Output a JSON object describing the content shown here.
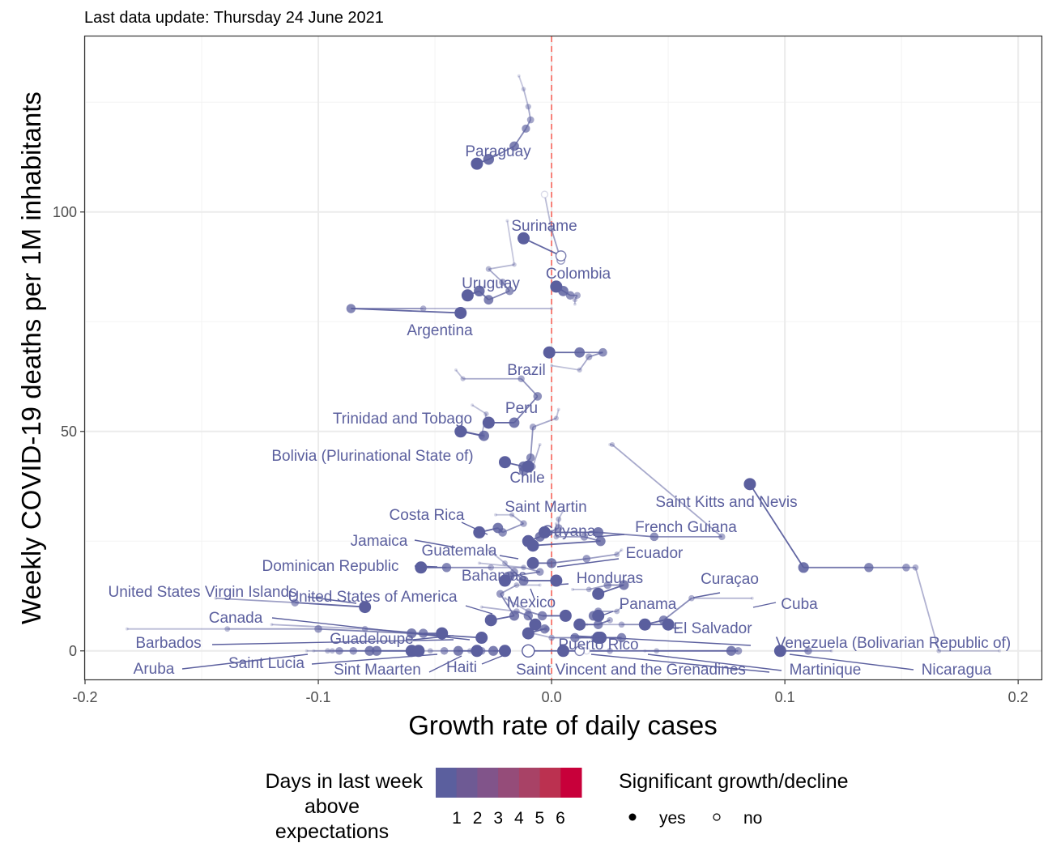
{
  "chart_data": {
    "type": "scatter",
    "subtitle": "Last data update: Thursday 24 June 2021",
    "xlabel": "Growth rate of daily cases",
    "ylabel": "Weekly COVID-19 deaths per 1M inhabitants",
    "xlim": [
      -0.2,
      0.21
    ],
    "ylim": [
      -6.5,
      140
    ],
    "x_ticks": [
      -0.2,
      -0.1,
      0.0,
      0.1,
      0.2
    ],
    "x_tick_labels": [
      "-0.2",
      "-0.1",
      "0.0",
      "0.1",
      "0.2"
    ],
    "y_ticks": [
      0,
      50,
      100
    ],
    "y_tick_labels": [
      "0",
      "50",
      "100"
    ],
    "reference_line": {
      "x": 0,
      "style": "dashed",
      "color": "#f8766d"
    },
    "grid": true,
    "legend": {
      "position": "bottom",
      "color_title": "Days in last week above expectations",
      "color_title_lines": [
        "Days in last week",
        "above",
        "expectations"
      ],
      "color_ticks": [
        "1",
        "2",
        "3",
        "4",
        "5",
        "6"
      ],
      "colors": [
        "#5b5f9e",
        "#6e5a94",
        "#81548a",
        "#954c79",
        "#a84266",
        "#bb3150",
        "#c8003a"
      ],
      "shape_title": "Significant growth/decline",
      "shape_items": [
        {
          "label": "yes",
          "filled": true
        },
        {
          "label": "no",
          "filled": false
        }
      ]
    },
    "series": [
      {
        "name": "Paraguay",
        "trail": [
          [
            -0.014,
            131
          ],
          [
            -0.012,
            128
          ],
          [
            -0.01,
            124
          ],
          [
            -0.009,
            121
          ],
          [
            -0.011,
            119
          ],
          [
            -0.016,
            115
          ],
          [
            -0.027,
            112
          ],
          [
            -0.032,
            111
          ]
        ]
      },
      {
        "name": "Suriname",
        "trail": [
          [
            -0.003,
            104
          ],
          [
            0.0,
            96
          ],
          [
            0.004,
            89
          ],
          [
            0.004,
            90
          ],
          [
            -0.012,
            94
          ]
        ],
        "open": [
          0,
          2,
          3
        ]
      },
      {
        "name": "Colombia",
        "trail": [
          [
            0.01,
            79
          ],
          [
            0.01,
            80
          ],
          [
            0.011,
            81
          ],
          [
            0.008,
            81
          ],
          [
            0.005,
            82
          ],
          [
            0.002,
            83
          ]
        ]
      },
      {
        "name": "Uruguay",
        "trail": [
          [
            -0.019,
            98
          ],
          [
            -0.016,
            88
          ],
          [
            -0.027,
            87
          ],
          [
            -0.021,
            84
          ],
          [
            -0.018,
            82
          ],
          [
            -0.027,
            80
          ],
          [
            -0.031,
            82
          ],
          [
            -0.036,
            81
          ]
        ]
      },
      {
        "name": "Argentina",
        "trail": [
          [
            -0.0,
            78
          ],
          [
            -0.055,
            78
          ],
          [
            -0.086,
            78
          ],
          [
            -0.039,
            77
          ]
        ]
      },
      {
        "name": "Brazil",
        "trail": [
          [
            0.0,
            65
          ],
          [
            0.012,
            64
          ],
          [
            0.016,
            67
          ],
          [
            0.022,
            68
          ],
          [
            0.012,
            68
          ],
          [
            -0.001,
            68
          ]
        ]
      },
      {
        "name": "Peru",
        "trail": [
          [
            -0.041,
            64
          ],
          [
            -0.038,
            62
          ],
          [
            -0.013,
            62
          ],
          [
            -0.006,
            58
          ],
          [
            -0.016,
            52
          ],
          [
            -0.027,
            52
          ]
        ]
      },
      {
        "name": "Trinidad and Tobago",
        "trail": [
          [
            -0.034,
            56
          ],
          [
            -0.028,
            54
          ],
          [
            -0.03,
            49
          ],
          [
            -0.038,
            50
          ],
          [
            -0.029,
            49
          ],
          [
            -0.039,
            50
          ]
        ]
      },
      {
        "name": "Bolivia (Plurinational State of)",
        "trail": [
          [
            0.003,
            55
          ],
          [
            0.002,
            53
          ],
          [
            -0.008,
            51
          ],
          [
            -0.009,
            44
          ],
          [
            -0.012,
            42
          ],
          [
            -0.02,
            43
          ]
        ]
      },
      {
        "name": "Chile",
        "trail": [
          [
            -0.005,
            47
          ],
          [
            -0.008,
            42
          ],
          [
            -0.012,
            41
          ],
          [
            -0.01,
            42
          ]
        ]
      },
      {
        "name": "Saint Kitts and Nevis",
        "trail": [
          [
            0.192,
            0
          ],
          [
            0.166,
            0
          ],
          [
            0.156,
            19
          ],
          [
            0.152,
            19
          ],
          [
            0.136,
            19
          ],
          [
            0.108,
            19
          ],
          [
            0.085,
            38
          ]
        ]
      },
      {
        "name": "French Guiana",
        "trail": [
          [
            0.025,
            47
          ],
          [
            0.026,
            47
          ],
          [
            0.073,
            26
          ],
          [
            0.044,
            26
          ],
          [
            0.02,
            27
          ],
          [
            -0.003,
            27
          ]
        ]
      },
      {
        "name": "Costa Rica",
        "trail": [
          [
            -0.024,
            31
          ],
          [
            -0.017,
            31
          ],
          [
            -0.012,
            29
          ],
          [
            -0.021,
            27
          ],
          [
            -0.023,
            28
          ],
          [
            -0.031,
            27
          ]
        ]
      },
      {
        "name": "Saint Martin",
        "trail": [
          [
            0.005,
            32
          ],
          [
            0.003,
            30
          ],
          [
            0.003,
            28
          ],
          [
            -0.005,
            26
          ],
          [
            -0.01,
            25
          ]
        ]
      },
      {
        "name": "Guyana",
        "trail": [
          [
            0.002,
            29
          ],
          [
            0.002,
            26
          ],
          [
            0.014,
            26
          ],
          [
            0.021,
            25
          ],
          [
            -0.008,
            24
          ]
        ]
      },
      {
        "name": "Ecuador",
        "trail": [
          [
            0.03,
            23
          ],
          [
            0.028,
            22
          ],
          [
            0.015,
            21
          ],
          [
            0.0,
            20
          ],
          [
            -0.008,
            20
          ]
        ]
      },
      {
        "name": "Jamaica",
        "trail": [
          [
            -0.031,
            20
          ],
          [
            -0.012,
            19
          ],
          [
            -0.005,
            18
          ],
          [
            -0.018,
            17
          ],
          [
            -0.02,
            16
          ]
        ]
      },
      {
        "name": "Guatemala",
        "trail": [
          [
            -0.027,
            23
          ],
          [
            -0.02,
            20
          ],
          [
            -0.016,
            18
          ],
          [
            -0.012,
            16
          ],
          [
            0.002,
            16
          ]
        ]
      },
      {
        "name": "Dominican Republic",
        "trail": [
          [
            -0.012,
            19
          ],
          [
            -0.026,
            19
          ],
          [
            -0.045,
            19
          ],
          [
            -0.056,
            19
          ]
        ]
      },
      {
        "name": "Honduras",
        "trail": [
          [
            0.009,
            14
          ],
          [
            0.016,
            14
          ],
          [
            0.024,
            15
          ],
          [
            0.031,
            15
          ],
          [
            0.02,
            13
          ]
        ]
      },
      {
        "name": "Bahamas",
        "trail": [
          [
            -0.005,
            15
          ],
          [
            -0.015,
            15
          ],
          [
            -0.022,
            13
          ],
          [
            -0.016,
            8
          ],
          [
            -0.026,
            7
          ]
        ]
      },
      {
        "name": "Panama",
        "trail": [
          [
            0.03,
            10
          ],
          [
            0.028,
            9
          ],
          [
            0.02,
            9
          ],
          [
            0.018,
            8
          ],
          [
            0.02,
            8
          ]
        ]
      },
      {
        "name": "Curaçao",
        "trail": [
          [
            0.086,
            12
          ],
          [
            0.06,
            12
          ],
          [
            0.048,
            7
          ],
          [
            0.04,
            6
          ]
        ]
      },
      {
        "name": "Cuba",
        "trail": [
          [
            0.02,
            6
          ],
          [
            0.025,
            7
          ],
          [
            0.02,
            6
          ],
          [
            0.012,
            6
          ]
        ]
      },
      {
        "name": "United States of America",
        "trail": [
          [
            -0.02,
            12
          ],
          [
            -0.01,
            9
          ],
          [
            -0.004,
            8
          ],
          [
            0.006,
            8
          ]
        ]
      },
      {
        "name": "Mexico",
        "trail": [
          [
            -0.03,
            10
          ],
          [
            -0.015,
            9
          ],
          [
            -0.01,
            8
          ],
          [
            -0.007,
            6
          ]
        ]
      },
      {
        "name": "El Salvador",
        "trail": [
          [
            0.015,
            6
          ],
          [
            0.03,
            6
          ],
          [
            0.04,
            6
          ],
          [
            0.05,
            6
          ]
        ]
      },
      {
        "name": "United States Virgin Islands",
        "trail": [
          [
            -0.144,
            12
          ],
          [
            -0.11,
            11
          ],
          [
            -0.08,
            10
          ]
        ]
      },
      {
        "name": "Canada",
        "trail": [
          [
            -0.12,
            6
          ],
          [
            -0.08,
            5
          ],
          [
            -0.055,
            4
          ],
          [
            -0.047,
            4
          ]
        ]
      },
      {
        "name": "Guadeloupe",
        "trail": [
          [
            -0.01,
            5
          ],
          [
            -0.002,
            5
          ],
          [
            -0.003,
            5
          ],
          [
            -0.01,
            4
          ]
        ]
      },
      {
        "name": "Barbados",
        "trail": [
          [
            -0.182,
            5
          ],
          [
            -0.139,
            5
          ],
          [
            -0.1,
            5
          ],
          [
            -0.06,
            4
          ],
          [
            -0.03,
            3
          ]
        ]
      },
      {
        "name": "Puerto Rico",
        "trail": [
          [
            0.012,
            3
          ],
          [
            0.018,
            3
          ],
          [
            0.03,
            3
          ],
          [
            0.021,
            3
          ]
        ]
      },
      {
        "name": "Venezuela (Bolivarian Republic of)",
        "trail": [
          [
            -0.008,
            4
          ],
          [
            0.0,
            3
          ],
          [
            0.01,
            3
          ],
          [
            0.02,
            3
          ]
        ]
      },
      {
        "name": "Aruba",
        "trail": [
          [
            -0.105,
            0
          ],
          [
            -0.094,
            0
          ],
          [
            -0.085,
            0
          ],
          [
            -0.075,
            0
          ],
          [
            -0.06,
            0
          ]
        ]
      },
      {
        "name": "Saint Lucia",
        "trail": [
          [
            -0.102,
            0
          ],
          [
            -0.096,
            0
          ],
          [
            -0.091,
            0
          ],
          [
            -0.078,
            0
          ],
          [
            -0.057,
            0
          ]
        ]
      },
      {
        "name": "Sint Maarten",
        "trail": [
          [
            -0.06,
            0
          ],
          [
            -0.052,
            0
          ],
          [
            -0.046,
            0
          ],
          [
            -0.04,
            0
          ],
          [
            -0.032,
            0
          ]
        ]
      },
      {
        "name": "Haiti",
        "trail": [
          [
            -0.04,
            0
          ],
          [
            -0.035,
            0
          ],
          [
            -0.03,
            0
          ],
          [
            -0.025,
            0
          ],
          [
            -0.02,
            0
          ]
        ]
      },
      {
        "name": "Saint Vincent and the Grenadines",
        "trail": [
          [
            0.015,
            0
          ],
          [
            0.025,
            0
          ],
          [
            0.012,
            0
          ],
          [
            -0.01,
            0
          ]
        ],
        "open": [
          0,
          2,
          3
        ]
      },
      {
        "name": "Martinique",
        "trail": [
          [
            0.04,
            0
          ],
          [
            0.045,
            0
          ],
          [
            0.08,
            0
          ],
          [
            0.077,
            0
          ],
          [
            0.005,
            0
          ]
        ]
      },
      {
        "name": "Nicaragua",
        "trail": [
          [
            0.12,
            0
          ],
          [
            0.11,
            0
          ],
          [
            0.098,
            0
          ]
        ]
      }
    ],
    "labels": [
      {
        "text": "Paraguay"
      },
      {
        "text": "Suriname"
      },
      {
        "text": "Colombia"
      },
      {
        "text": "Uruguay"
      },
      {
        "text": "Argentina"
      },
      {
        "text": "Brazil"
      },
      {
        "text": "Peru"
      },
      {
        "text": "Trinidad and Tobago"
      },
      {
        "text": "Bolivia (Plurinational State of)"
      },
      {
        "text": "Chile"
      },
      {
        "text": "Saint Kitts and Nevis"
      },
      {
        "text": "French Guiana"
      },
      {
        "text": "Costa Rica"
      },
      {
        "text": "Saint Martin"
      },
      {
        "text": "Guyana"
      },
      {
        "text": "Ecuador"
      },
      {
        "text": "Jamaica"
      },
      {
        "text": "Guatemala"
      },
      {
        "text": "Dominican Republic"
      },
      {
        "text": "Honduras"
      },
      {
        "text": "Bahamas"
      },
      {
        "text": "Curaçao"
      },
      {
        "text": "United States Virgin Islands"
      },
      {
        "text": "United States of America"
      },
      {
        "text": "Mexico"
      },
      {
        "text": "Panama"
      },
      {
        "text": "Cuba"
      },
      {
        "text": "Canada"
      },
      {
        "text": "Haiti"
      },
      {
        "text": "El Salvador"
      },
      {
        "text": "Guadeloupe"
      },
      {
        "text": "Barbados"
      },
      {
        "text": "Puerto Rico"
      },
      {
        "text": "Venezuela (Bolivarian Republic of)"
      },
      {
        "text": "Saint Lucia"
      },
      {
        "text": "Aruba"
      },
      {
        "text": "Sint Maarten"
      },
      {
        "text": "Saint Vincent and the Grenadines"
      },
      {
        "text": "Martinique"
      },
      {
        "text": "Nicaragua"
      }
    ]
  }
}
